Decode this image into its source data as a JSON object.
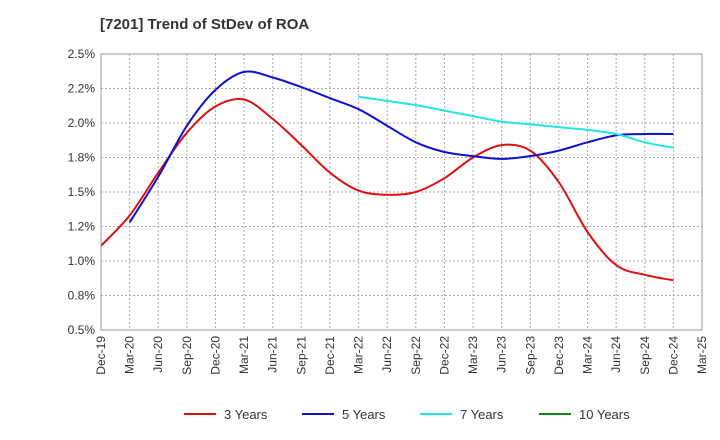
{
  "chart_data": {
    "type": "line",
    "title": "[7201]  Trend of StDev of ROA",
    "xlabel": "",
    "ylabel": "",
    "x_ticks": [
      "Dec-19",
      "Mar-20",
      "Jun-20",
      "Sep-20",
      "Dec-20",
      "Mar-21",
      "Jun-21",
      "Sep-21",
      "Dec-21",
      "Mar-22",
      "Jun-22",
      "Sep-22",
      "Dec-22",
      "Mar-23",
      "Jun-23",
      "Sep-23",
      "Dec-23",
      "Mar-24",
      "Jun-24",
      "Sep-24",
      "Dec-24",
      "Mar-25"
    ],
    "y_ticks": [
      "0.5%",
      "0.8%",
      "1.0%",
      "1.2%",
      "1.5%",
      "1.8%",
      "2.0%",
      "2.2%",
      "2.5%"
    ],
    "ylim": [
      0.5,
      2.5
    ],
    "grid": true,
    "legend_position": "bottom",
    "series": [
      {
        "name": "3 Years",
        "color": "#dd1111",
        "x": [
          "Dec-19",
          "Mar-20",
          "Jun-20",
          "Sep-20",
          "Dec-20",
          "Mar-21",
          "Jun-21",
          "Sep-21",
          "Dec-21",
          "Mar-22",
          "Jun-22",
          "Sep-22",
          "Dec-22",
          "Mar-23",
          "Jun-23",
          "Sep-23",
          "Dec-23",
          "Mar-24",
          "Jun-24",
          "Sep-24",
          "Dec-24"
        ],
        "values": [
          1.11,
          1.33,
          1.64,
          1.93,
          2.12,
          2.17,
          2.03,
          1.84,
          1.64,
          1.51,
          1.48,
          1.5,
          1.6,
          1.75,
          1.84,
          1.8,
          1.57,
          1.21,
          0.97,
          0.9,
          0.86
        ]
      },
      {
        "name": "5 Years",
        "color": "#1111cc",
        "x": [
          "Mar-20",
          "Jun-20",
          "Sep-20",
          "Dec-20",
          "Mar-21",
          "Jun-21",
          "Sep-21",
          "Dec-21",
          "Mar-22",
          "Jun-22",
          "Sep-22",
          "Dec-22",
          "Mar-23",
          "Jun-23",
          "Sep-23",
          "Dec-23",
          "Mar-24",
          "Jun-24",
          "Sep-24",
          "Dec-24"
        ],
        "values": [
          1.28,
          1.61,
          1.98,
          2.24,
          2.37,
          2.33,
          2.26,
          2.18,
          2.1,
          1.98,
          1.86,
          1.79,
          1.76,
          1.74,
          1.76,
          1.8,
          1.86,
          1.91,
          1.92,
          1.92
        ]
      },
      {
        "name": "7 Years",
        "color": "#22e6e6",
        "x": [
          "Mar-22",
          "Jun-22",
          "Sep-22",
          "Dec-22",
          "Mar-23",
          "Jun-23",
          "Sep-23",
          "Dec-23",
          "Mar-24",
          "Jun-24",
          "Sep-24",
          "Dec-24"
        ],
        "values": [
          2.19,
          2.16,
          2.13,
          2.09,
          2.05,
          2.01,
          1.99,
          1.97,
          1.95,
          1.92,
          1.86,
          1.82
        ]
      },
      {
        "name": "10 Years",
        "color": "#118811",
        "x": [],
        "values": []
      }
    ]
  }
}
